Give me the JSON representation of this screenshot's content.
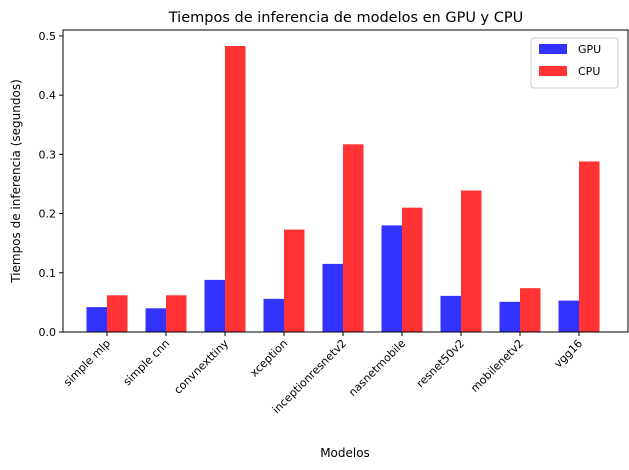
{
  "chart_data": {
    "type": "bar",
    "title": "Tiempos de inferencia de modelos en GPU y CPU",
    "xlabel": "Modelos",
    "ylabel": "Tiempos de inferencia (segundos)",
    "ylim": [
      0,
      0.51
    ],
    "yticks": [
      0.0,
      0.1,
      0.2,
      0.3,
      0.4,
      0.5
    ],
    "ytick_labels": [
      "0.0",
      "0.1",
      "0.2",
      "0.3",
      "0.4",
      "0.5"
    ],
    "grid": false,
    "legend_position": "top-right",
    "categories": [
      "simple mlp",
      "simple cnn",
      "convnexttiny",
      "xception",
      "inceptionresnetv2",
      "nasnetmobile",
      "resnet50v2",
      "mobilenetv2",
      "vgg16"
    ],
    "series": [
      {
        "name": "GPU",
        "color": "#3333ff",
        "values": [
          0.042,
          0.04,
          0.088,
          0.056,
          0.115,
          0.18,
          0.061,
          0.051,
          0.053
        ]
      },
      {
        "name": "CPU",
        "color": "#ff3333",
        "values": [
          0.062,
          0.062,
          0.483,
          0.173,
          0.317,
          0.21,
          0.239,
          0.074,
          0.288
        ]
      }
    ]
  }
}
